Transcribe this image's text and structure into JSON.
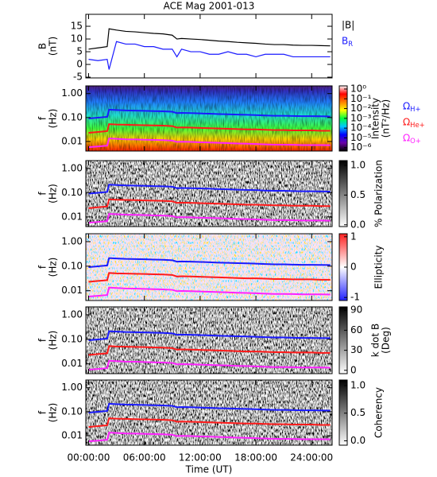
{
  "chart_data": [
    {
      "type": "line",
      "title": "ACE Mag 2001-013",
      "ylabel": [
        "B",
        "(nT)"
      ],
      "x": [
        0,
        1,
        2,
        2.2,
        3,
        4,
        5,
        6,
        7,
        8,
        9,
        9.5,
        10,
        11,
        12,
        13,
        14,
        15,
        16,
        17,
        18,
        19,
        20,
        21,
        22,
        23,
        24,
        25,
        26
      ],
      "ylim": [
        -5.3,
        19.7
      ],
      "yticks": [
        -5,
        0,
        5,
        10,
        15
      ],
      "series": [
        {
          "name": "|B|",
          "color": "#000000",
          "values": [
            6,
            6.5,
            7,
            14,
            13.5,
            13,
            12.8,
            12.5,
            12.2,
            12,
            11.5,
            10,
            10.2,
            10,
            9.8,
            9.5,
            9.2,
            9,
            8.7,
            8.5,
            8.3,
            8,
            7.8,
            7.8,
            7.6,
            7.5,
            7.5,
            7.4,
            7.3
          ]
        },
        {
          "name": "B_R",
          "color": "#1a1aff",
          "values": [
            2,
            1.5,
            2,
            -2,
            9,
            8,
            8,
            7,
            7,
            6,
            6,
            3,
            6,
            5,
            5,
            4,
            4,
            5,
            4,
            4,
            3,
            4,
            4,
            4,
            3,
            3,
            3,
            3,
            3
          ]
        }
      ]
    },
    {
      "type": "spectrogram",
      "background": "rainbow",
      "ylabel": [
        "f",
        "(Hz)"
      ],
      "ylog": true,
      "x": [
        0,
        1,
        2,
        2.2,
        3,
        4,
        5,
        6,
        7,
        8,
        9,
        9.5,
        10,
        11,
        12,
        13,
        14,
        15,
        16,
        17,
        18,
        19,
        20,
        21,
        22,
        23,
        24,
        25,
        26
      ],
      "ylim": [
        0.004,
        2.1
      ],
      "yticks": [
        0.01,
        {
          "value": 0.1,
          "label": "0.10"
        },
        {
          "value": 1,
          "label": "1.00"
        }
      ],
      "colorbar": {
        "label": [
          "Intensity",
          "(nT²/Hz)"
        ],
        "log": true,
        "lim": [
          4.5e-07,
          2.1
        ],
        "colors": [
          "#000000",
          "#6a00a8",
          "#0000ff",
          "#00c8ff",
          "#00ff40",
          "#ffff00",
          "#ff8000",
          "#ff0000",
          "#ffffff"
        ],
        "ticks": [
          {
            "value": 1,
            "label": "10⁰"
          },
          {
            "value": 0.1,
            "label": "10⁻¹"
          },
          {
            "value": 0.01,
            "label": "10⁻²"
          },
          {
            "value": 0.001,
            "label": "10⁻³"
          },
          {
            "value": 0.0001,
            "label": "10⁻⁴"
          },
          {
            "value": 1e-05,
            "label": "10⁻⁵"
          },
          {
            "value": 1e-06,
            "label": "10⁻⁶"
          }
        ]
      },
      "series": [
        {
          "name": "Ω_H+",
          "color": "#1a1aff",
          "values": [
            0.092,
            0.099,
            0.107,
            0.214,
            0.206,
            0.198,
            0.195,
            0.191,
            0.186,
            0.183,
            0.175,
            0.153,
            0.156,
            0.153,
            0.149,
            0.145,
            0.14,
            0.137,
            0.133,
            0.13,
            0.127,
            0.122,
            0.119,
            0.119,
            0.116,
            0.114,
            0.114,
            0.113,
            0.111
          ]
        },
        {
          "name": "Ω_He+",
          "color": "#ff1a1a",
          "values": [
            0.023,
            0.025,
            0.027,
            0.053,
            0.051,
            0.05,
            0.049,
            0.048,
            0.047,
            0.046,
            0.044,
            0.038,
            0.039,
            0.038,
            0.037,
            0.036,
            0.035,
            0.034,
            0.033,
            0.032,
            0.032,
            0.031,
            0.03,
            0.03,
            0.029,
            0.029,
            0.029,
            0.028,
            0.028
          ]
        },
        {
          "name": "Ω_O+",
          "color": "#ff22ff",
          "values": [
            0.0058,
            0.0062,
            0.0067,
            0.0134,
            0.0129,
            0.0124,
            0.0122,
            0.0119,
            0.0116,
            0.0114,
            0.0109,
            0.0096,
            0.0098,
            0.0096,
            0.0093,
            0.0091,
            0.0088,
            0.0086,
            0.0083,
            0.0081,
            0.0079,
            0.0076,
            0.0074,
            0.0074,
            0.0073,
            0.0071,
            0.0071,
            0.0071,
            0.007
          ]
        }
      ]
    },
    {
      "type": "spectrogram",
      "background": "gray",
      "ylabel": [
        "f",
        "(Hz)"
      ],
      "ylog": true,
      "x": [
        0,
        1,
        2,
        2.2,
        3,
        4,
        5,
        6,
        7,
        8,
        9,
        9.5,
        10,
        11,
        12,
        13,
        14,
        15,
        16,
        17,
        18,
        19,
        20,
        21,
        22,
        23,
        24,
        25,
        26
      ],
      "ylim": [
        0.004,
        2.1
      ],
      "yticks": [
        0.01,
        {
          "value": 0.1,
          "label": "0.10"
        },
        {
          "value": 1,
          "label": "1.00"
        }
      ],
      "colorbar": {
        "label": [
          "% Polarization"
        ],
        "log": false,
        "lim": [
          -0.03,
          1.08
        ],
        "colors": [
          "#ffffff",
          "#000000"
        ],
        "ticks": [
          {
            "value": 0,
            "label": "0.0"
          },
          0.5,
          {
            "value": 1,
            "label": "1.0"
          }
        ]
      },
      "series": [
        {
          "color": "#1a1aff",
          "values": [
            0.092,
            0.099,
            0.107,
            0.214,
            0.206,
            0.198,
            0.195,
            0.191,
            0.186,
            0.183,
            0.175,
            0.153,
            0.156,
            0.153,
            0.149,
            0.145,
            0.14,
            0.137,
            0.133,
            0.13,
            0.127,
            0.122,
            0.119,
            0.119,
            0.116,
            0.114,
            0.114,
            0.113,
            0.111
          ]
        },
        {
          "color": "#ff1a1a",
          "values": [
            0.023,
            0.025,
            0.027,
            0.053,
            0.051,
            0.05,
            0.049,
            0.048,
            0.047,
            0.046,
            0.044,
            0.038,
            0.039,
            0.038,
            0.037,
            0.036,
            0.035,
            0.034,
            0.033,
            0.032,
            0.032,
            0.031,
            0.03,
            0.03,
            0.029,
            0.029,
            0.029,
            0.028,
            0.028
          ]
        },
        {
          "color": "#ff22ff",
          "values": [
            0.0058,
            0.0062,
            0.0067,
            0.0134,
            0.0129,
            0.0124,
            0.0122,
            0.0119,
            0.0116,
            0.0114,
            0.0109,
            0.0096,
            0.0098,
            0.0096,
            0.0093,
            0.0091,
            0.0088,
            0.0086,
            0.0083,
            0.0081,
            0.0079,
            0.0076,
            0.0074,
            0.0074,
            0.0073,
            0.0071,
            0.0071,
            0.0071,
            0.007
          ]
        }
      ]
    },
    {
      "type": "spectrogram",
      "background": "redblue",
      "ylabel": [
        "f",
        "(Hz)"
      ],
      "ylog": true,
      "x": [
        0,
        1,
        2,
        2.2,
        3,
        4,
        5,
        6,
        7,
        8,
        9,
        9.5,
        10,
        11,
        12,
        13,
        14,
        15,
        16,
        17,
        18,
        19,
        20,
        21,
        22,
        23,
        24,
        25,
        26
      ],
      "ylim": [
        0.004,
        2.1
      ],
      "yticks": [
        0.01,
        {
          "value": 0.1,
          "label": "0.10"
        },
        {
          "value": 1,
          "label": "1.00"
        }
      ],
      "colorbar": {
        "label": [
          "Ellipticity"
        ],
        "log": false,
        "lim": [
          -1.1,
          1.1
        ],
        "colors": [
          "#2020ff",
          "#ffffff",
          "#ff2020"
        ],
        "ticks": [
          -1,
          0,
          1
        ]
      },
      "series": [
        {
          "color": "#1a1aff",
          "values": [
            0.092,
            0.099,
            0.107,
            0.214,
            0.206,
            0.198,
            0.195,
            0.191,
            0.186,
            0.183,
            0.175,
            0.153,
            0.156,
            0.153,
            0.149,
            0.145,
            0.14,
            0.137,
            0.133,
            0.13,
            0.127,
            0.122,
            0.119,
            0.119,
            0.116,
            0.114,
            0.114,
            0.113,
            0.111
          ]
        },
        {
          "color": "#ff1a1a",
          "values": [
            0.023,
            0.025,
            0.027,
            0.053,
            0.051,
            0.05,
            0.049,
            0.048,
            0.047,
            0.046,
            0.044,
            0.038,
            0.039,
            0.038,
            0.037,
            0.036,
            0.035,
            0.034,
            0.033,
            0.032,
            0.032,
            0.031,
            0.03,
            0.03,
            0.029,
            0.029,
            0.029,
            0.028,
            0.028
          ]
        },
        {
          "color": "#ff22ff",
          "values": [
            0.0058,
            0.0062,
            0.0067,
            0.0134,
            0.0129,
            0.0124,
            0.0122,
            0.0119,
            0.0116,
            0.0114,
            0.0109,
            0.0096,
            0.0098,
            0.0096,
            0.0093,
            0.0091,
            0.0088,
            0.0086,
            0.0083,
            0.0081,
            0.0079,
            0.0076,
            0.0074,
            0.0074,
            0.0073,
            0.0071,
            0.0071,
            0.0071,
            0.007
          ]
        }
      ]
    },
    {
      "type": "spectrogram",
      "background": "gray",
      "ylabel": [
        "f",
        "(Hz)"
      ],
      "ylog": true,
      "x": [
        0,
        1,
        2,
        2.2,
        3,
        4,
        5,
        6,
        7,
        8,
        9,
        9.5,
        10,
        11,
        12,
        13,
        14,
        15,
        16,
        17,
        18,
        19,
        20,
        21,
        22,
        23,
        24,
        25,
        26
      ],
      "ylim": [
        0.004,
        2.1
      ],
      "yticks": [
        0.01,
        {
          "value": 0.1,
          "label": "0.10"
        },
        {
          "value": 1,
          "label": "1.00"
        }
      ],
      "colorbar": {
        "label": [
          "k dot B",
          "(Deg)"
        ],
        "log": false,
        "lim": [
          -5,
          95
        ],
        "colors": [
          "#ffffff",
          "#000000"
        ],
        "ticks": [
          0,
          30,
          60,
          90
        ]
      },
      "series": [
        {
          "color": "#1a1aff",
          "values": [
            0.092,
            0.099,
            0.107,
            0.214,
            0.206,
            0.198,
            0.195,
            0.191,
            0.186,
            0.183,
            0.175,
            0.153,
            0.156,
            0.153,
            0.149,
            0.145,
            0.14,
            0.137,
            0.133,
            0.13,
            0.127,
            0.122,
            0.119,
            0.119,
            0.116,
            0.114,
            0.114,
            0.113,
            0.111
          ]
        },
        {
          "color": "#ff1a1a",
          "values": [
            0.023,
            0.025,
            0.027,
            0.053,
            0.051,
            0.05,
            0.049,
            0.048,
            0.047,
            0.046,
            0.044,
            0.038,
            0.039,
            0.038,
            0.037,
            0.036,
            0.035,
            0.034,
            0.033,
            0.032,
            0.032,
            0.031,
            0.03,
            0.03,
            0.029,
            0.029,
            0.029,
            0.028,
            0.028
          ]
        },
        {
          "color": "#ff22ff",
          "values": [
            0.0058,
            0.0062,
            0.0067,
            0.0134,
            0.0129,
            0.0124,
            0.0122,
            0.0119,
            0.0116,
            0.0114,
            0.0109,
            0.0096,
            0.0098,
            0.0096,
            0.0093,
            0.0091,
            0.0088,
            0.0086,
            0.0083,
            0.0081,
            0.0079,
            0.0076,
            0.0074,
            0.0074,
            0.0073,
            0.0071,
            0.0071,
            0.0071,
            0.007
          ]
        }
      ]
    },
    {
      "type": "spectrogram",
      "background": "gray",
      "ylabel": [
        "f",
        "(Hz)"
      ],
      "ylog": true,
      "x": [
        0,
        1,
        2,
        2.2,
        3,
        4,
        5,
        6,
        7,
        8,
        9,
        9.5,
        10,
        11,
        12,
        13,
        14,
        15,
        16,
        17,
        18,
        19,
        20,
        21,
        22,
        23,
        24,
        25,
        26
      ],
      "ylim": [
        0.004,
        2.1
      ],
      "yticks": [
        0.01,
        {
          "value": 0.1,
          "label": "0.10"
        },
        {
          "value": 1,
          "label": "1.00"
        }
      ],
      "colorbar": {
        "label": [
          "Coherency"
        ],
        "log": false,
        "lim": [
          -0.08,
          1.1
        ],
        "colors": [
          "#ffffff",
          "#000000"
        ],
        "ticks": [
          {
            "value": 0,
            "label": "0.0"
          },
          0.5,
          {
            "value": 1,
            "label": "1.0"
          }
        ]
      },
      "xlim": [
        -0.3,
        26.2
      ],
      "xlabel": "Time (UT)",
      "xticks": [
        {
          "value": 0,
          "label": "00:00:00"
        },
        {
          "value": 6,
          "label": "06:00:00"
        },
        {
          "value": 12,
          "label": "12:00:00"
        },
        {
          "value": 18,
          "label": "18:00:00"
        },
        {
          "value": 24,
          "label": "24:00:00"
        }
      ],
      "series": [
        {
          "color": "#1a1aff",
          "values": [
            0.092,
            0.099,
            0.107,
            0.214,
            0.206,
            0.198,
            0.195,
            0.191,
            0.186,
            0.183,
            0.175,
            0.153,
            0.156,
            0.153,
            0.149,
            0.145,
            0.14,
            0.137,
            0.133,
            0.13,
            0.127,
            0.122,
            0.119,
            0.119,
            0.116,
            0.114,
            0.114,
            0.113,
            0.111
          ]
        },
        {
          "color": "#ff1a1a",
          "values": [
            0.023,
            0.025,
            0.027,
            0.053,
            0.051,
            0.05,
            0.049,
            0.048,
            0.047,
            0.046,
            0.044,
            0.038,
            0.039,
            0.038,
            0.037,
            0.036,
            0.035,
            0.034,
            0.033,
            0.032,
            0.032,
            0.031,
            0.03,
            0.03,
            0.029,
            0.029,
            0.029,
            0.028,
            0.028
          ]
        },
        {
          "color": "#ff22ff",
          "values": [
            0.0058,
            0.0062,
            0.0067,
            0.0134,
            0.0129,
            0.0124,
            0.0122,
            0.0119,
            0.0116,
            0.0114,
            0.0109,
            0.0096,
            0.0098,
            0.0096,
            0.0093,
            0.0091,
            0.0088,
            0.0086,
            0.0083,
            0.0081,
            0.0079,
            0.0076,
            0.0074,
            0.0074,
            0.0073,
            0.0071,
            0.0071,
            0.0071,
            0.007
          ]
        }
      ]
    }
  ]
}
